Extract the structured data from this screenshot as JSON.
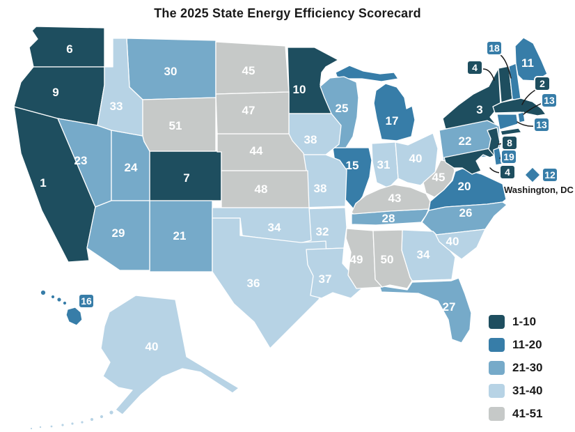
{
  "title": "The 2025 State Energy Efficiency Scorecard",
  "map": {
    "dc_annotation": "Washington, DC"
  },
  "legend": {
    "items": [
      {
        "label": "1-10",
        "color": "#1e4e5f"
      },
      {
        "label": "11-20",
        "color": "#377da8"
      },
      {
        "label": "21-30",
        "color": "#76aac9"
      },
      {
        "label": "31-40",
        "color": "#b7d3e5"
      },
      {
        "label": "41-51",
        "color": "#c6c9c8"
      }
    ]
  },
  "colors": {
    "background": "#ffffff",
    "state_border": "#ffffff",
    "state_label": "#ffffff",
    "callout_border": "#ffffff",
    "leader_line": "#1a1a1a",
    "title_text": "#1a1a1a",
    "legend_text": "#1a1a1a"
  },
  "chart_data": {
    "type": "choropleth",
    "title": "The 2025 State Energy Efficiency Scorecard",
    "value_label": "State energy efficiency rank (1 = best, 51 = worst)",
    "legend_position": "bottom-right",
    "bands": [
      {
        "range": "1-10",
        "color": "#1e4e5f"
      },
      {
        "range": "11-20",
        "color": "#377da8"
      },
      {
        "range": "21-30",
        "color": "#76aac9"
      },
      {
        "range": "31-40",
        "color": "#b7d3e5"
      },
      {
        "range": "41-51",
        "color": "#c6c9c8"
      }
    ],
    "rankings": [
      {
        "state": "CA",
        "rank": 1
      },
      {
        "state": "MA",
        "rank": 2,
        "callout": true
      },
      {
        "state": "NY",
        "rank": 3
      },
      {
        "state": "VT",
        "rank": 4,
        "callout": true
      },
      {
        "state": "MD",
        "rank": 4,
        "callout": true
      },
      {
        "state": "WA",
        "rank": 6
      },
      {
        "state": "CO",
        "rank": 7
      },
      {
        "state": "NJ",
        "rank": 8,
        "callout": true
      },
      {
        "state": "OR",
        "rank": 9
      },
      {
        "state": "MN",
        "rank": 10
      },
      {
        "state": "ME",
        "rank": 11
      },
      {
        "state": "DC",
        "rank": 12,
        "callout": true
      },
      {
        "state": "RI",
        "rank": 13,
        "callout": true
      },
      {
        "state": "CT",
        "rank": 13,
        "callout": true
      },
      {
        "state": "IL",
        "rank": 15
      },
      {
        "state": "HI",
        "rank": 16,
        "callout": true
      },
      {
        "state": "MI",
        "rank": 17
      },
      {
        "state": "NH",
        "rank": 18,
        "callout": true
      },
      {
        "state": "DE",
        "rank": 19,
        "callout": true
      },
      {
        "state": "VA",
        "rank": 20
      },
      {
        "state": "NM",
        "rank": 21
      },
      {
        "state": "PA",
        "rank": 22
      },
      {
        "state": "NV",
        "rank": 23
      },
      {
        "state": "UT",
        "rank": 24
      },
      {
        "state": "WI",
        "rank": 25
      },
      {
        "state": "NC",
        "rank": 26
      },
      {
        "state": "FL",
        "rank": 27
      },
      {
        "state": "TN",
        "rank": 28
      },
      {
        "state": "AZ",
        "rank": 29
      },
      {
        "state": "MT",
        "rank": 30
      },
      {
        "state": "IN",
        "rank": 31
      },
      {
        "state": "AR",
        "rank": 32
      },
      {
        "state": "ID",
        "rank": 33
      },
      {
        "state": "OK",
        "rank": 34
      },
      {
        "state": "GA",
        "rank": 34
      },
      {
        "state": "TX",
        "rank": 36
      },
      {
        "state": "LA",
        "rank": 37
      },
      {
        "state": "IA",
        "rank": 38
      },
      {
        "state": "MO",
        "rank": 38
      },
      {
        "state": "SC",
        "rank": 40
      },
      {
        "state": "OH",
        "rank": 40
      },
      {
        "state": "AK",
        "rank": 40
      },
      {
        "state": "KY",
        "rank": 43
      },
      {
        "state": "NE",
        "rank": 44
      },
      {
        "state": "ND",
        "rank": 45
      },
      {
        "state": "WV",
        "rank": 45
      },
      {
        "state": "SD",
        "rank": 47
      },
      {
        "state": "KS",
        "rank": 48
      },
      {
        "state": "MS",
        "rank": 49
      },
      {
        "state": "AL",
        "rank": 50
      },
      {
        "state": "WY",
        "rank": 51
      }
    ]
  }
}
